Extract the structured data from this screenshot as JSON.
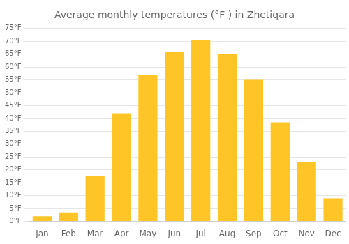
{
  "chart_data": {
    "type": "bar",
    "title": "Average monthly temperatures (°F ) in Zhetiqara",
    "categories": [
      "Jan",
      "Feb",
      "Mar",
      "Apr",
      "May",
      "Jun",
      "Jul",
      "Aug",
      "Sep",
      "Oct",
      "Nov",
      "Dec"
    ],
    "values": [
      2,
      3.5,
      17.5,
      42,
      57,
      66,
      70.5,
      65,
      55,
      38.5,
      23,
      9
    ],
    "color": "#FFC526",
    "ylim": [
      0,
      75
    ],
    "yticks": [
      {
        "value": 0,
        "label": "0°F"
      },
      {
        "value": 5,
        "label": "5°F"
      },
      {
        "value": 10,
        "label": "10°F"
      },
      {
        "value": 15,
        "label": "15°F"
      },
      {
        "value": 20,
        "label": "20°F"
      },
      {
        "value": 25,
        "label": "25°F"
      },
      {
        "value": 30,
        "label": "30°F"
      },
      {
        "value": 35,
        "label": "35°F"
      },
      {
        "value": 40,
        "label": "40°F"
      },
      {
        "value": 45,
        "label": "45°F"
      },
      {
        "value": 50,
        "label": "50°F"
      },
      {
        "value": 55,
        "label": "55°F"
      },
      {
        "value": 60,
        "label": "60°F"
      },
      {
        "value": 65,
        "label": "65°F"
      },
      {
        "value": 70,
        "label": "70°F"
      },
      {
        "value": 75,
        "label": "75°F"
      }
    ],
    "grid": true
  }
}
